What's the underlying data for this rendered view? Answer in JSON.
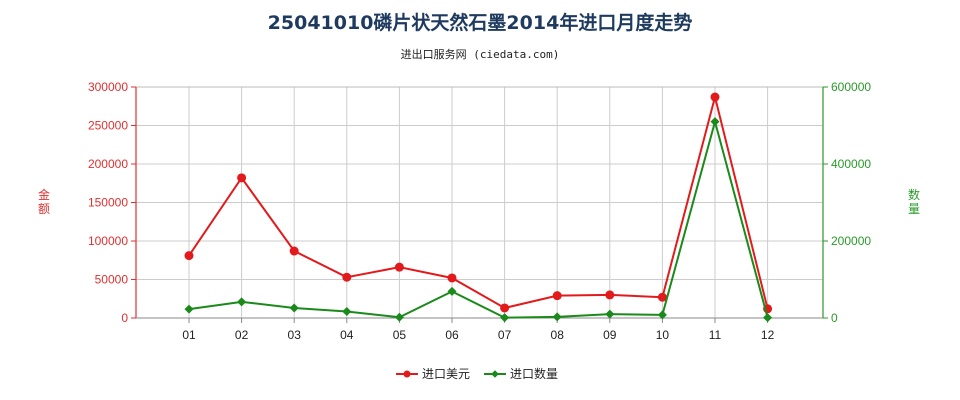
{
  "title": "25041010磷片状天然石墨2014年进口月度走势",
  "subtitle": "进出口服务网 (ciedata.com)",
  "colors": {
    "left_axis": "#e03030",
    "right_axis": "#2a9a2a",
    "series_usd": "#e31a1c",
    "series_qty": "#1a8a1a",
    "grid": "#cccccc"
  },
  "chart_data": {
    "type": "line",
    "categories": [
      "01",
      "02",
      "03",
      "04",
      "05",
      "06",
      "07",
      "08",
      "09",
      "10",
      "11",
      "12"
    ],
    "y_left": {
      "label": "金额",
      "ylim": [
        0,
        300000
      ],
      "ticks": [
        0,
        50000,
        100000,
        150000,
        200000,
        250000,
        300000
      ]
    },
    "y_right": {
      "label": "数量",
      "ylim": [
        0,
        600000
      ],
      "ticks": [
        0,
        200000,
        400000,
        600000
      ]
    },
    "grid": true,
    "legend_position": "bottom-center",
    "series": [
      {
        "name": "进口美元",
        "axis": "left",
        "values": [
          81000,
          182000,
          87000,
          53000,
          66000,
          52000,
          13000,
          29000,
          30000,
          27000,
          287000,
          12000
        ]
      },
      {
        "name": "进口数量",
        "axis": "right",
        "values": [
          23000,
          42000,
          26000,
          17000,
          2000,
          69000,
          1000,
          3000,
          10000,
          8000,
          510000,
          1000
        ]
      }
    ]
  }
}
